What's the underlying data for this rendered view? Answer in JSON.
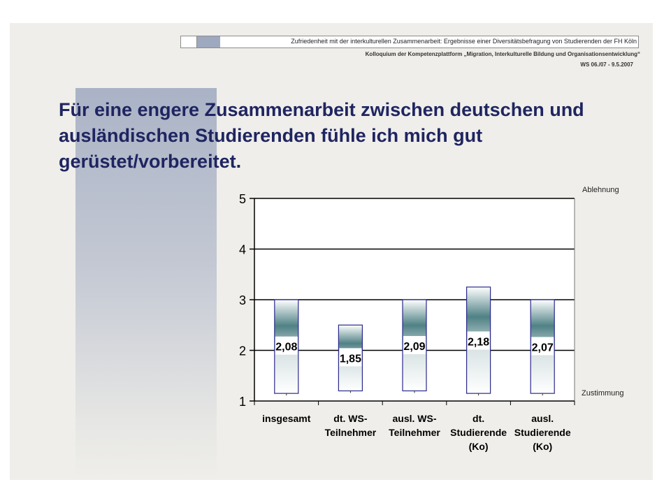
{
  "header": {
    "title": "Zufriedenheit mit der interkulturellen Zusammenarbeit: Ergebnisse einer Diversitätsbefragung von Studierenden der FH Köln",
    "subtitle": "Kolloquium der Kompetenzplattform „Migration, Interkulturelle Bildung und Organisationsentwicklung“",
    "date": "WS 06./07 - 9.5.2007"
  },
  "slide": {
    "title": "Für eine engere Zusammenarbeit zwischen deutschen und ausländischen Studierenden fühle ich mich gut gerüstet/vorbereitet.",
    "scale_top": "Ablehnung",
    "scale_bottom": "Zustimmung"
  },
  "colors": {
    "title": "#1f2560",
    "box_border": "#2a2a8c",
    "box_mid": "#4f8185",
    "panel": "#aab3c6"
  },
  "chart_data": {
    "type": "bar",
    "categories": [
      [
        "insgesamt"
      ],
      [
        "dt. WS-",
        "Teilnehmer"
      ],
      [
        "ausl. WS-",
        "Teilnehmer"
      ],
      [
        "dt.",
        "Studierende",
        "(Ko)"
      ],
      [
        "ausl.",
        "Studierende",
        "(Ko)"
      ]
    ],
    "values": [
      2.08,
      1.85,
      2.09,
      2.18,
      2.07
    ],
    "value_labels": [
      "2,08",
      "1,85",
      "2,09",
      "2,18",
      "2,07"
    ],
    "ranges": [
      [
        1.15,
        3.0
      ],
      [
        1.2,
        2.5
      ],
      [
        1.2,
        3.0
      ],
      [
        1.15,
        3.25
      ],
      [
        1.15,
        3.0
      ]
    ],
    "ylim": [
      1,
      5
    ],
    "yticks": [
      1,
      2,
      3,
      4,
      5
    ],
    "grid": true
  }
}
